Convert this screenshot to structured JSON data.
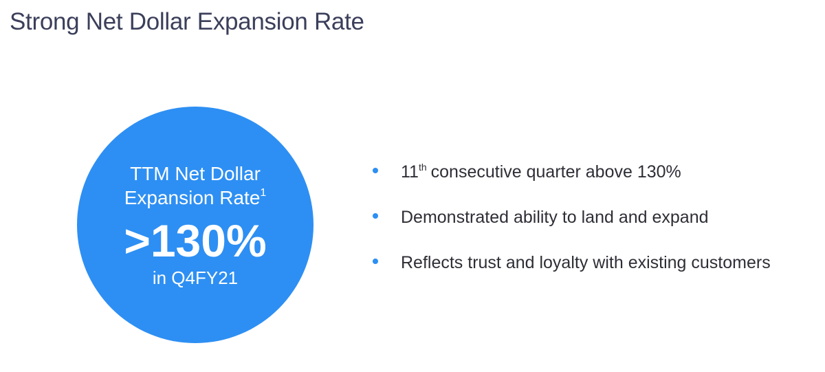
{
  "title": "Strong Net Dollar Expansion Rate",
  "highlight": {
    "label_lines": [
      "TTM Net Dollar",
      "Expansion Rate"
    ],
    "footnote_marker": "1",
    "value": ">130%",
    "period": "in Q4FY21"
  },
  "bullets": [
    {
      "lead": "11",
      "sup": "th",
      "rest": "consecutive quarter above 130%"
    },
    {
      "rest": "Demonstrated ability to land and expand"
    },
    {
      "rest": "Reflects trust and loyalty with existing customers"
    }
  ]
}
